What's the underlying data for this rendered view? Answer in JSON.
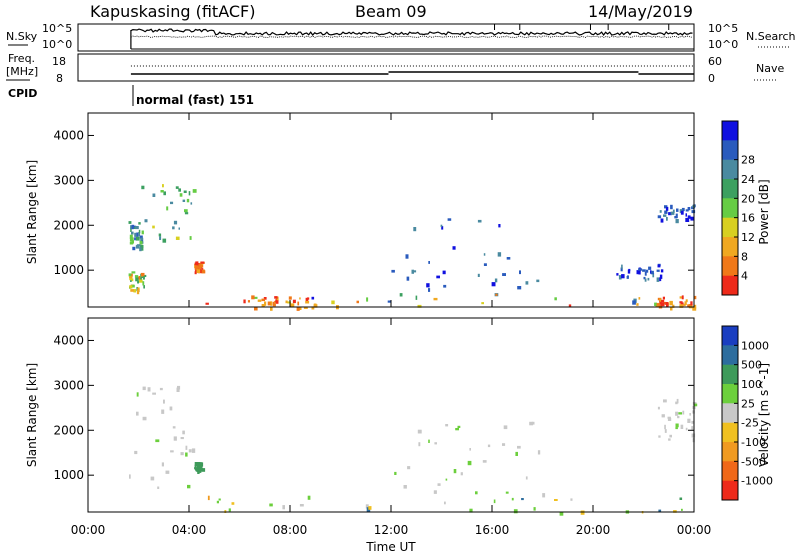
{
  "header": {
    "station": "Kapuskasing (fitACF)",
    "beam": "Beam 09",
    "date": "14/May/2019"
  },
  "top_panel_labels": {
    "nsky": "N.Sky",
    "nsearch": "N.Search",
    "freq_line1": "Freq.",
    "freq_line2": "[MHz]",
    "nave": "Nave",
    "cpid": "CPID",
    "noise_ticks": [
      "10^5",
      "10^0"
    ],
    "freq_ticks": [
      "18",
      "8"
    ],
    "nave_ticks": [
      "60",
      "0"
    ],
    "cpid_text": "normal (fast) 151"
  },
  "chart_data": [
    {
      "type": "heatmap",
      "name": "power",
      "ylabel": "Slant Range [km]",
      "ytick_labels": [
        "1000",
        "2000",
        "3000",
        "4000"
      ],
      "yrange_km": [
        180,
        4500
      ],
      "colorbar": {
        "label": "Power [dB]",
        "tick_labels": [
          "4",
          "8",
          "12",
          "16",
          "20",
          "24",
          "28"
        ],
        "colors": [
          "#1010e0",
          "#2a5bbd",
          "#4a8aa0",
          "#3ca060",
          "#66cc44",
          "#d8d020",
          "#f0a820",
          "#f07818",
          "#ee2a1a"
        ]
      },
      "regions": [
        {
          "t": [
            1.6,
            2.1
          ],
          "r": [
            1500,
            2100
          ],
          "level": "mid-low"
        },
        {
          "t": [
            2.0,
            4.2
          ],
          "r": [
            1700,
            3000
          ],
          "level": "mid"
        },
        {
          "t": [
            1.6,
            2.2
          ],
          "r": [
            500,
            1000
          ],
          "level": "mid-high"
        },
        {
          "t": [
            4.2,
            4.5
          ],
          "r": [
            950,
            1200
          ],
          "level": "high"
        },
        {
          "t": [
            4.4,
            23.5
          ],
          "r": [
            180,
            500
          ],
          "level": "mixed"
        },
        {
          "t": [
            6.0,
            9.0
          ],
          "r": [
            180,
            450
          ],
          "level": "high"
        },
        {
          "t": [
            22.5,
            24.0
          ],
          "r": [
            180,
            450
          ],
          "level": "high"
        },
        {
          "t": [
            12.0,
            18.0
          ],
          "r": [
            600,
            2200
          ],
          "level": "low"
        },
        {
          "t": [
            20.8,
            22.7
          ],
          "r": [
            800,
            1150
          ],
          "level": "low"
        },
        {
          "t": [
            22.5,
            24.0
          ],
          "r": [
            2100,
            2500
          ],
          "level": "low"
        }
      ]
    },
    {
      "type": "heatmap",
      "name": "velocity",
      "ylabel": "Slant Range [km]",
      "ytick_labels": [
        "1000",
        "2000",
        "3000",
        "4000"
      ],
      "yrange_km": [
        180,
        4500
      ],
      "colorbar": {
        "label": "Velocity [m s^-1]",
        "tick_labels": [
          "1000",
          "500",
          "100",
          "25",
          "-25",
          "-100",
          "-500",
          "-1000"
        ],
        "colors": [
          "#1a3ec0",
          "#2d6d9e",
          "#3e9a5a",
          "#6ccf3c",
          "#c8c8c8",
          "#f0c020",
          "#f09a20",
          "#f06818",
          "#ee2a1a"
        ]
      },
      "regions": [
        {
          "t": [
            1.6,
            4.2
          ],
          "r": [
            600,
            3000
          ],
          "level": "grey"
        },
        {
          "t": [
            4.2,
            4.5
          ],
          "r": [
            1100,
            1300
          ],
          "level": "green"
        },
        {
          "t": [
            4.4,
            23.5
          ],
          "r": [
            180,
            550
          ],
          "level": "mixed"
        },
        {
          "t": [
            12.0,
            18.0
          ],
          "r": [
            600,
            2200
          ],
          "level": "grey"
        },
        {
          "t": [
            22.5,
            24.0
          ],
          "r": [
            1800,
            2700
          ],
          "level": "grey"
        }
      ]
    }
  ],
  "time_axis": {
    "label": "Time UT",
    "tick_labels": [
      "00:00",
      "04:00",
      "08:00",
      "12:00",
      "16:00",
      "20:00",
      "00:00"
    ],
    "range_hours": [
      0,
      24
    ]
  }
}
